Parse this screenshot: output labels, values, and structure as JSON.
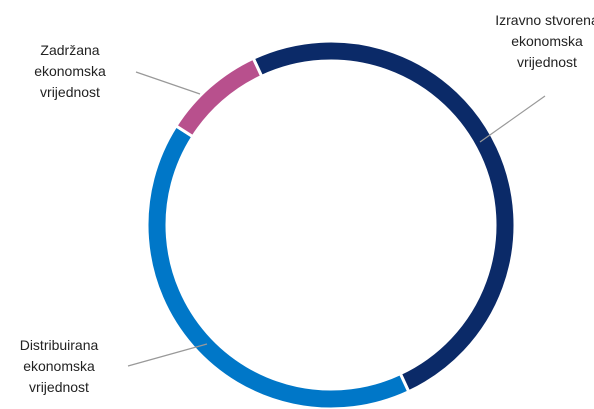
{
  "chart_data": {
    "type": "donut",
    "categories": [
      "Izravno stvorena ekonomska vrijednost",
      "Distribuirana ekonomska vrijednost",
      "Zadržana ekonomska vrijednost"
    ],
    "values": [
      50,
      41,
      9
    ],
    "colors": [
      "#0b2a68",
      "#0077c8",
      "#b8508d"
    ]
  }
}
